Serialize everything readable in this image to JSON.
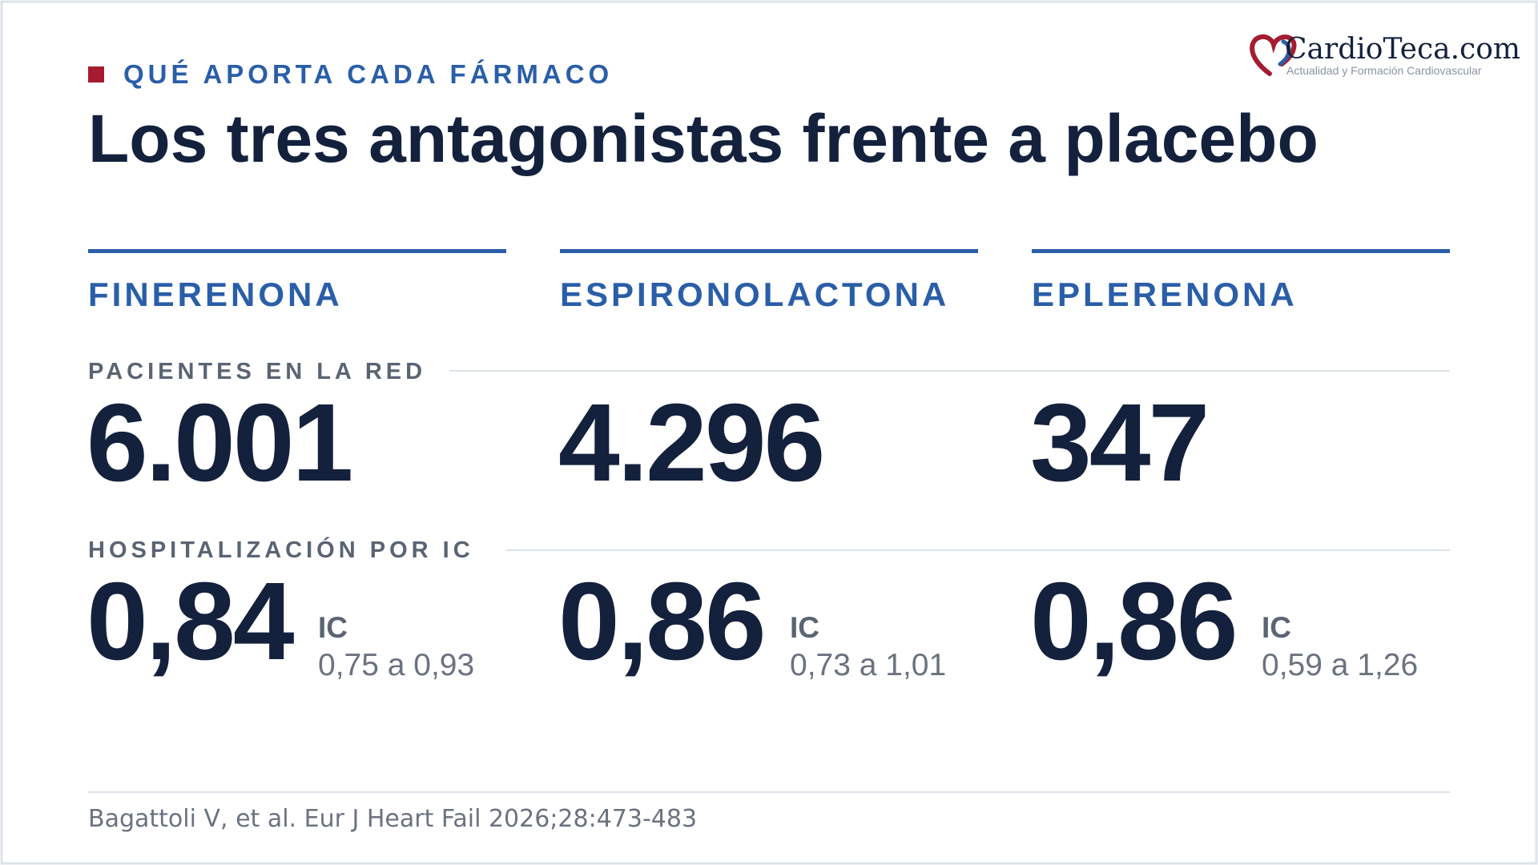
{
  "header": {
    "kicker": "QUÉ APORTA CADA FÁRMACO",
    "title": "Los tres antagonistas frente a placebo"
  },
  "logo": {
    "name": "CardioTeca.com",
    "tagline": "Actualidad y Formación Cardiovascular"
  },
  "sections": {
    "patients": "PACIENTES EN LA RED",
    "hospitalization": "HOSPITALIZACIÓN POR IC"
  },
  "columns": [
    {
      "name": "FINERENONA",
      "patients": "6.001",
      "hr": "0,84",
      "ci_label": "IC",
      "ci": "0,75 a 0,93"
    },
    {
      "name": "ESPIRONOLACTONA",
      "patients": "4.296",
      "hr": "0,86",
      "ci_label": "IC",
      "ci": "0,73 a 1,01"
    },
    {
      "name": "EPLERENONA",
      "patients": "347",
      "hr": "0,86",
      "ci_label": "IC",
      "ci": "0,59 a 1,26"
    }
  ],
  "footer": {
    "citation": "Bagattoli V, et al. Eur J Heart Fail 2026;28:473-483"
  }
}
